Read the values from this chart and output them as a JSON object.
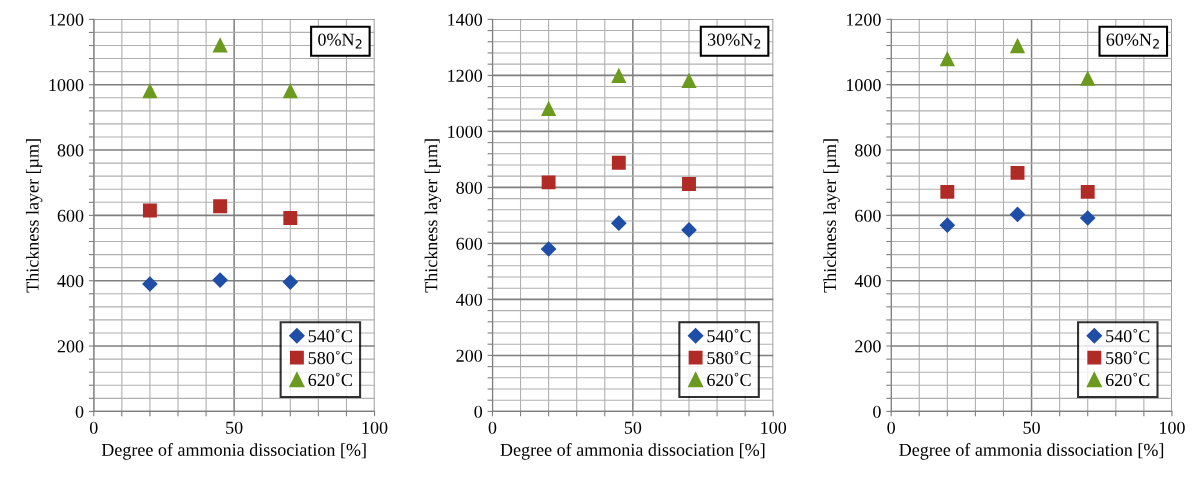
{
  "chart_data": [
    {
      "type": "scatter",
      "xlabel": "Degree of ammonia dissociation [%]",
      "ylabel": "Thickness layer [µm]",
      "annotations": [
        "0%N$_{2}$"
      ],
      "xlim": [
        0,
        100
      ],
      "ylim": [
        0,
        1200
      ],
      "xticks": [
        0,
        {
          "value": 10,
          "label": null
        },
        {
          "value": 20,
          "label": null
        },
        {
          "value": 30,
          "label": null
        },
        {
          "value": 40,
          "label": null
        },
        50,
        {
          "value": 60,
          "label": null
        },
        {
          "value": 70,
          "label": null
        },
        {
          "value": 80,
          "label": null
        },
        {
          "value": 90,
          "label": null
        },
        100
      ],
      "yticks": [
        0,
        {
          "value": 40,
          "label": null
        },
        {
          "value": 80,
          "label": null
        },
        {
          "value": 120,
          "label": null
        },
        {
          "value": 160,
          "label": null
        },
        200,
        {
          "value": 240,
          "label": null
        },
        {
          "value": 280,
          "label": null
        },
        {
          "value": 320,
          "label": null
        },
        {
          "value": 360,
          "label": null
        },
        400,
        {
          "value": 440,
          "label": null
        },
        {
          "value": 480,
          "label": null
        },
        {
          "value": 520,
          "label": null
        },
        {
          "value": 560,
          "label": null
        },
        600,
        {
          "value": 640,
          "label": null
        },
        {
          "value": 680,
          "label": null
        },
        {
          "value": 720,
          "label": null
        },
        {
          "value": 760,
          "label": null
        },
        800,
        {
          "value": 840,
          "label": null
        },
        {
          "value": 880,
          "label": null
        },
        {
          "value": 920,
          "label": null
        },
        {
          "value": 960,
          "label": null
        },
        1000,
        {
          "value": 1040,
          "label": null
        },
        {
          "value": 1080,
          "label": null
        },
        {
          "value": 1120,
          "label": null
        },
        {
          "value": 1160,
          "label": null
        },
        1200
      ],
      "grid": true,
      "legend": "bottom right",
      "series": [
        {
          "name": "540˚C",
          "color": "#1f4ea8",
          "marker": "diamond",
          "x": [
            20,
            45,
            70
          ],
          "values": [
            390,
            402,
            396
          ]
        },
        {
          "name": "580˚C",
          "color": "#b02a26",
          "marker": "square",
          "x": [
            20,
            45,
            70
          ],
          "values": [
            615,
            628,
            592
          ]
        },
        {
          "name": "620˚C",
          "color": "#6b9a1f",
          "marker": "triangle",
          "x": [
            20,
            45,
            70
          ],
          "values": [
            982,
            1122,
            982
          ]
        }
      ]
    },
    {
      "type": "scatter",
      "xlabel": "Degree of ammonia dissociation [%]",
      "ylabel": "Thickness layer [µm]",
      "annotations": [
        "30%N$_{2}$"
      ],
      "xlim": [
        0,
        100
      ],
      "ylim": [
        0,
        1400
      ],
      "xticks": [
        0,
        {
          "value": 10,
          "label": null
        },
        {
          "value": 20,
          "label": null
        },
        {
          "value": 30,
          "label": null
        },
        {
          "value": 40,
          "label": null
        },
        50,
        {
          "value": 60,
          "label": null
        },
        {
          "value": 70,
          "label": null
        },
        {
          "value": 80,
          "label": null
        },
        {
          "value": 90,
          "label": null
        },
        100
      ],
      "yticks": [
        0,
        {
          "value": 40,
          "label": null
        },
        {
          "value": 80,
          "label": null
        },
        {
          "value": 120,
          "label": null
        },
        {
          "value": 160,
          "label": null
        },
        200,
        {
          "value": 240,
          "label": null
        },
        {
          "value": 280,
          "label": null
        },
        {
          "value": 320,
          "label": null
        },
        {
          "value": 360,
          "label": null
        },
        400,
        {
          "value": 440,
          "label": null
        },
        {
          "value": 480,
          "label": null
        },
        {
          "value": 520,
          "label": null
        },
        {
          "value": 560,
          "label": null
        },
        600,
        {
          "value": 640,
          "label": null
        },
        {
          "value": 680,
          "label": null
        },
        {
          "value": 720,
          "label": null
        },
        {
          "value": 760,
          "label": null
        },
        800,
        {
          "value": 840,
          "label": null
        },
        {
          "value": 880,
          "label": null
        },
        {
          "value": 920,
          "label": null
        },
        {
          "value": 960,
          "label": null
        },
        1000,
        {
          "value": 1040,
          "label": null
        },
        {
          "value": 1080,
          "label": null
        },
        {
          "value": 1120,
          "label": null
        },
        {
          "value": 1160,
          "label": null
        },
        1200,
        {
          "value": 1240,
          "label": null
        },
        {
          "value": 1280,
          "label": null
        },
        {
          "value": 1320,
          "label": null
        },
        {
          "value": 1360,
          "label": null
        },
        1400
      ],
      "grid": true,
      "legend": "bottom right",
      "series": [
        {
          "name": "540˚C",
          "color": "#1f4ea8",
          "marker": "diamond",
          "x": [
            20,
            45,
            70
          ],
          "values": [
            580,
            672,
            648
          ]
        },
        {
          "name": "580˚C",
          "color": "#b02a26",
          "marker": "square",
          "x": [
            20,
            45,
            70
          ],
          "values": [
            818,
            888,
            812
          ]
        },
        {
          "name": "620˚C",
          "color": "#6b9a1f",
          "marker": "triangle",
          "x": [
            20,
            45,
            70
          ],
          "values": [
            1082,
            1200,
            1182
          ]
        }
      ]
    },
    {
      "type": "scatter",
      "xlabel": "Degree of ammonia dissociation [%]",
      "ylabel": "Thickness layer [µm]",
      "annotations": [
        "60%N$_{2}$"
      ],
      "xlim": [
        0,
        100
      ],
      "ylim": [
        0,
        1200
      ],
      "xticks": [
        0,
        {
          "value": 10,
          "label": null
        },
        {
          "value": 20,
          "label": null
        },
        {
          "value": 30,
          "label": null
        },
        {
          "value": 40,
          "label": null
        },
        50,
        {
          "value": 60,
          "label": null
        },
        {
          "value": 70,
          "label": null
        },
        {
          "value": 80,
          "label": null
        },
        {
          "value": 90,
          "label": null
        },
        100
      ],
      "yticks": [
        0,
        {
          "value": 40,
          "label": null
        },
        {
          "value": 80,
          "label": null
        },
        {
          "value": 120,
          "label": null
        },
        {
          "value": 160,
          "label": null
        },
        200,
        {
          "value": 240,
          "label": null
        },
        {
          "value": 280,
          "label": null
        },
        {
          "value": 320,
          "label": null
        },
        {
          "value": 360,
          "label": null
        },
        400,
        {
          "value": 440,
          "label": null
        },
        {
          "value": 480,
          "label": null
        },
        {
          "value": 520,
          "label": null
        },
        {
          "value": 560,
          "label": null
        },
        600,
        {
          "value": 640,
          "label": null
        },
        {
          "value": 680,
          "label": null
        },
        {
          "value": 720,
          "label": null
        },
        {
          "value": 760,
          "label": null
        },
        800,
        {
          "value": 840,
          "label": null
        },
        {
          "value": 880,
          "label": null
        },
        {
          "value": 920,
          "label": null
        },
        {
          "value": 960,
          "label": null
        },
        1000,
        {
          "value": 1040,
          "label": null
        },
        {
          "value": 1080,
          "label": null
        },
        {
          "value": 1120,
          "label": null
        },
        {
          "value": 1160,
          "label": null
        },
        1200
      ],
      "grid": true,
      "legend": "bottom right",
      "series": [
        {
          "name": "540˚C",
          "color": "#1f4ea8",
          "marker": "diamond",
          "x": [
            20,
            45,
            70
          ],
          "values": [
            570,
            603,
            592
          ]
        },
        {
          "name": "580˚C",
          "color": "#b02a26",
          "marker": "square",
          "x": [
            20,
            45,
            70
          ],
          "values": [
            672,
            730,
            672
          ]
        },
        {
          "name": "620˚C",
          "color": "#6b9a1f",
          "marker": "triangle",
          "x": [
            20,
            45,
            70
          ],
          "values": [
            1080,
            1120,
            1020
          ]
        }
      ]
    }
  ]
}
